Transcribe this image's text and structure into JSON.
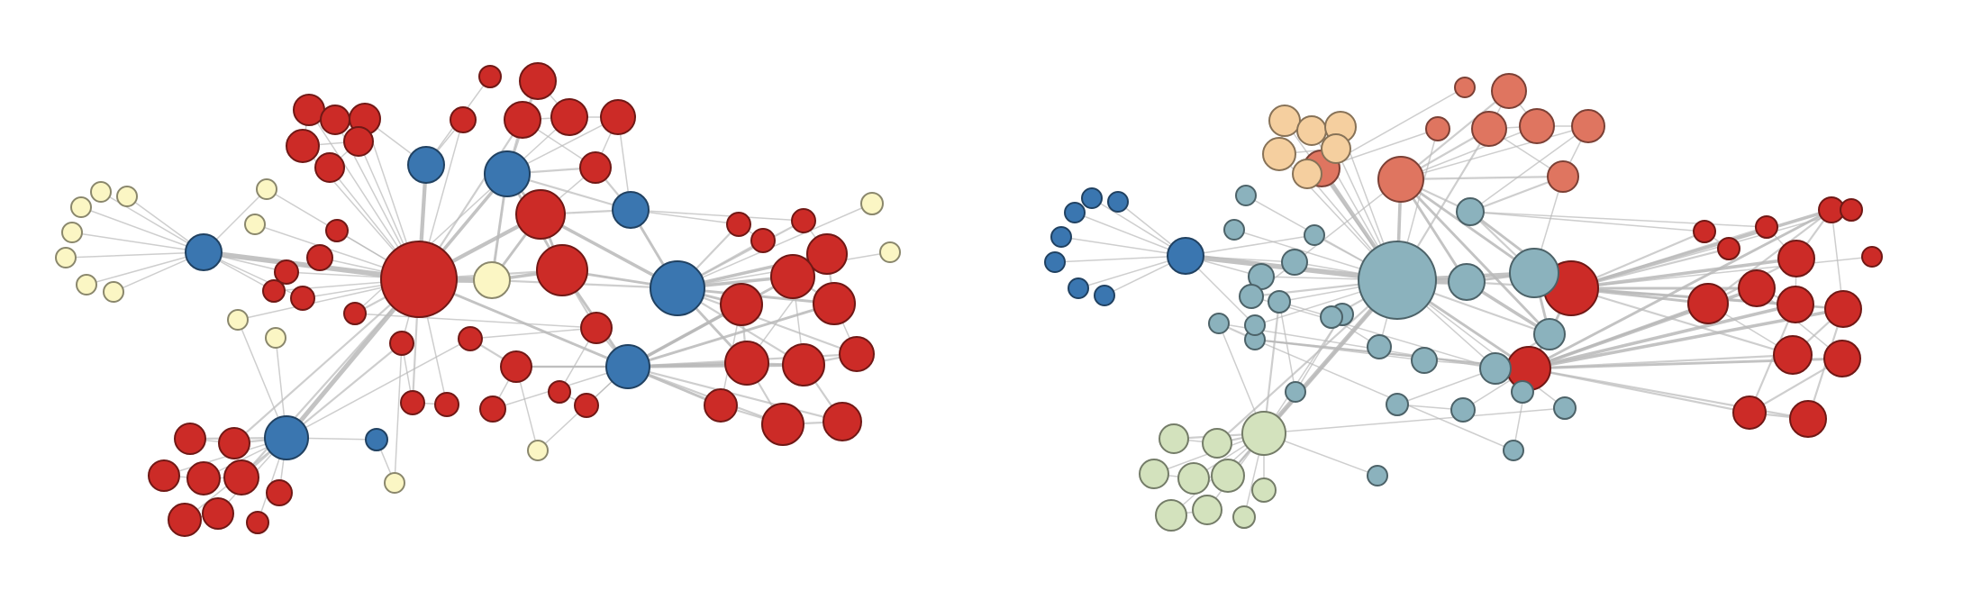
{
  "palette": {
    "red": "#cc2b27",
    "blue": "#3a76b0",
    "pale_yellow": "#fbf6c4",
    "teal": "#8bb2bd",
    "salmon": "#df7560",
    "peach": "#f5cf9f",
    "sage": "#d3e2bd",
    "edge": "#b9b9b9"
  },
  "panels": [
    {
      "id": "left",
      "description_name": "network-partition-left"
    },
    {
      "id": "right",
      "description_name": "network-partition-right"
    }
  ]
}
